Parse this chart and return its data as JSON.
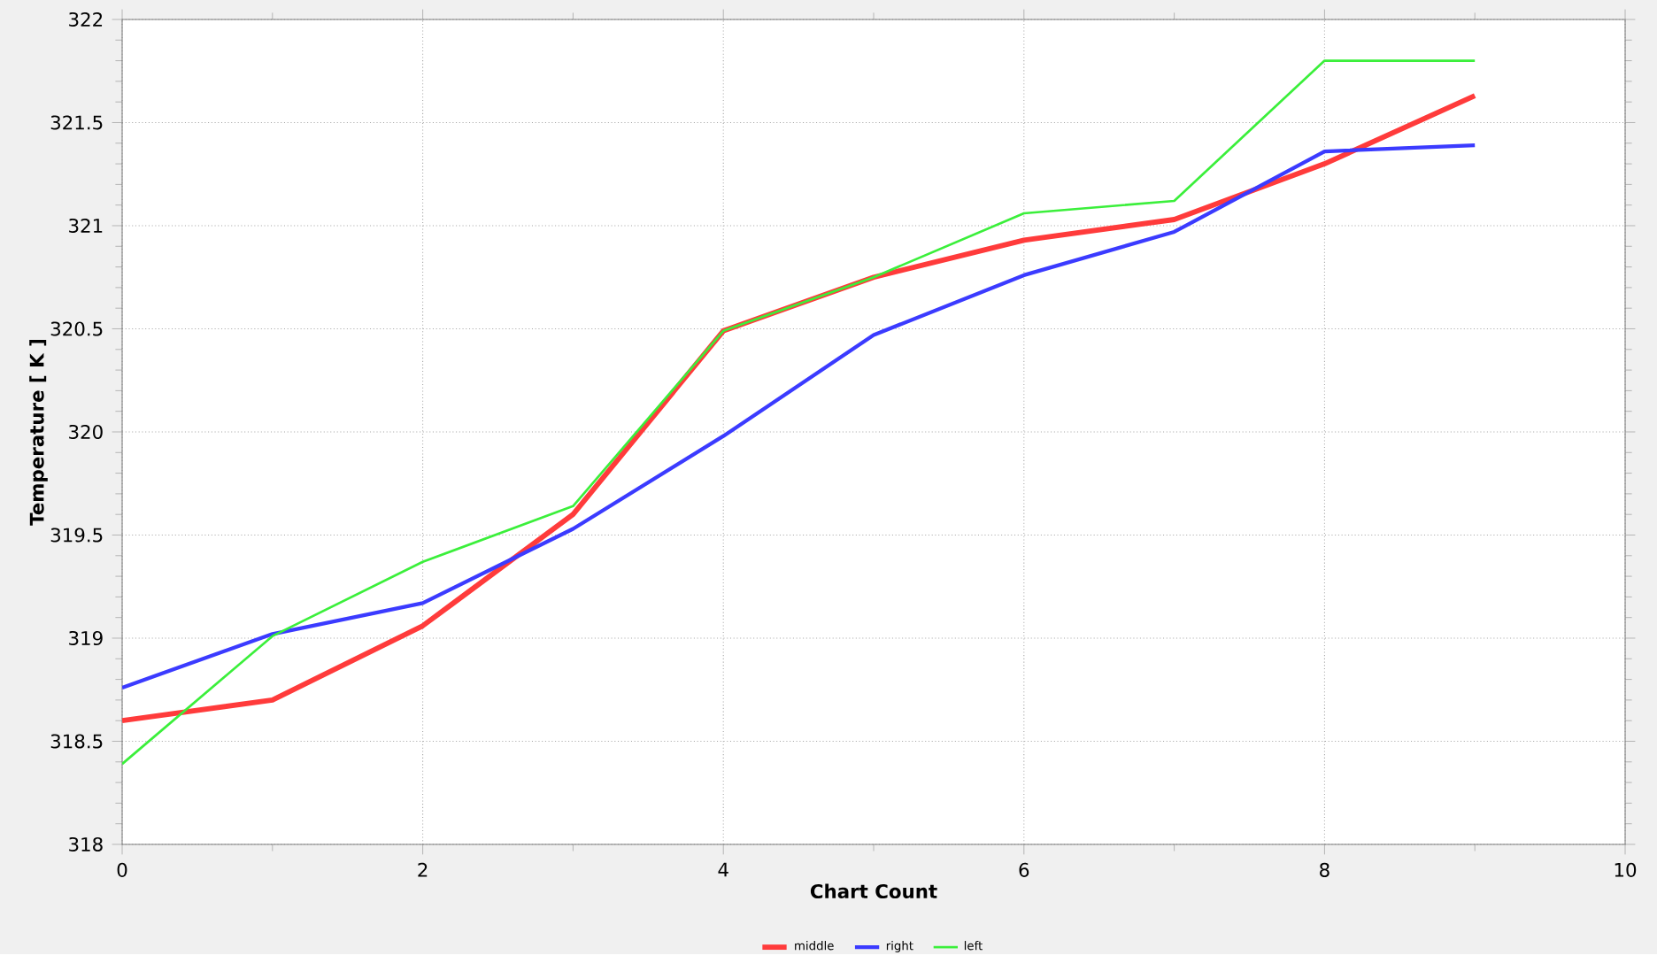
{
  "chart_data": {
    "type": "line",
    "xlabel": "Chart Count",
    "ylabel": "Temperature [ K ]",
    "x": [
      0,
      1,
      2,
      3,
      4,
      5,
      6,
      7,
      8,
      9
    ],
    "series": [
      {
        "name": "middle",
        "color": "#ff3b3b",
        "values": [
          318.6,
          318.7,
          319.06,
          319.6,
          320.49,
          320.75,
          320.93,
          321.03,
          321.3,
          321.63
        ]
      },
      {
        "name": "right",
        "color": "#3b3bff",
        "values": [
          318.76,
          319.02,
          319.17,
          319.53,
          319.98,
          320.47,
          320.76,
          320.97,
          321.36,
          321.39
        ]
      },
      {
        "name": "left",
        "color": "#3bef3b",
        "values": [
          318.39,
          319.01,
          319.37,
          319.64,
          320.49,
          320.75,
          321.06,
          321.12,
          321.8,
          321.8
        ]
      }
    ],
    "xlim": [
      0,
      10
    ],
    "xticks": [
      0,
      2,
      4,
      6,
      8,
      10
    ],
    "ylim": [
      318,
      322
    ],
    "yticks": [
      318,
      318.5,
      319,
      319.5,
      320,
      320.5,
      321,
      321.5,
      322
    ],
    "grid": true,
    "legend": "bottom",
    "marker": "none",
    "line_style": "solid"
  }
}
